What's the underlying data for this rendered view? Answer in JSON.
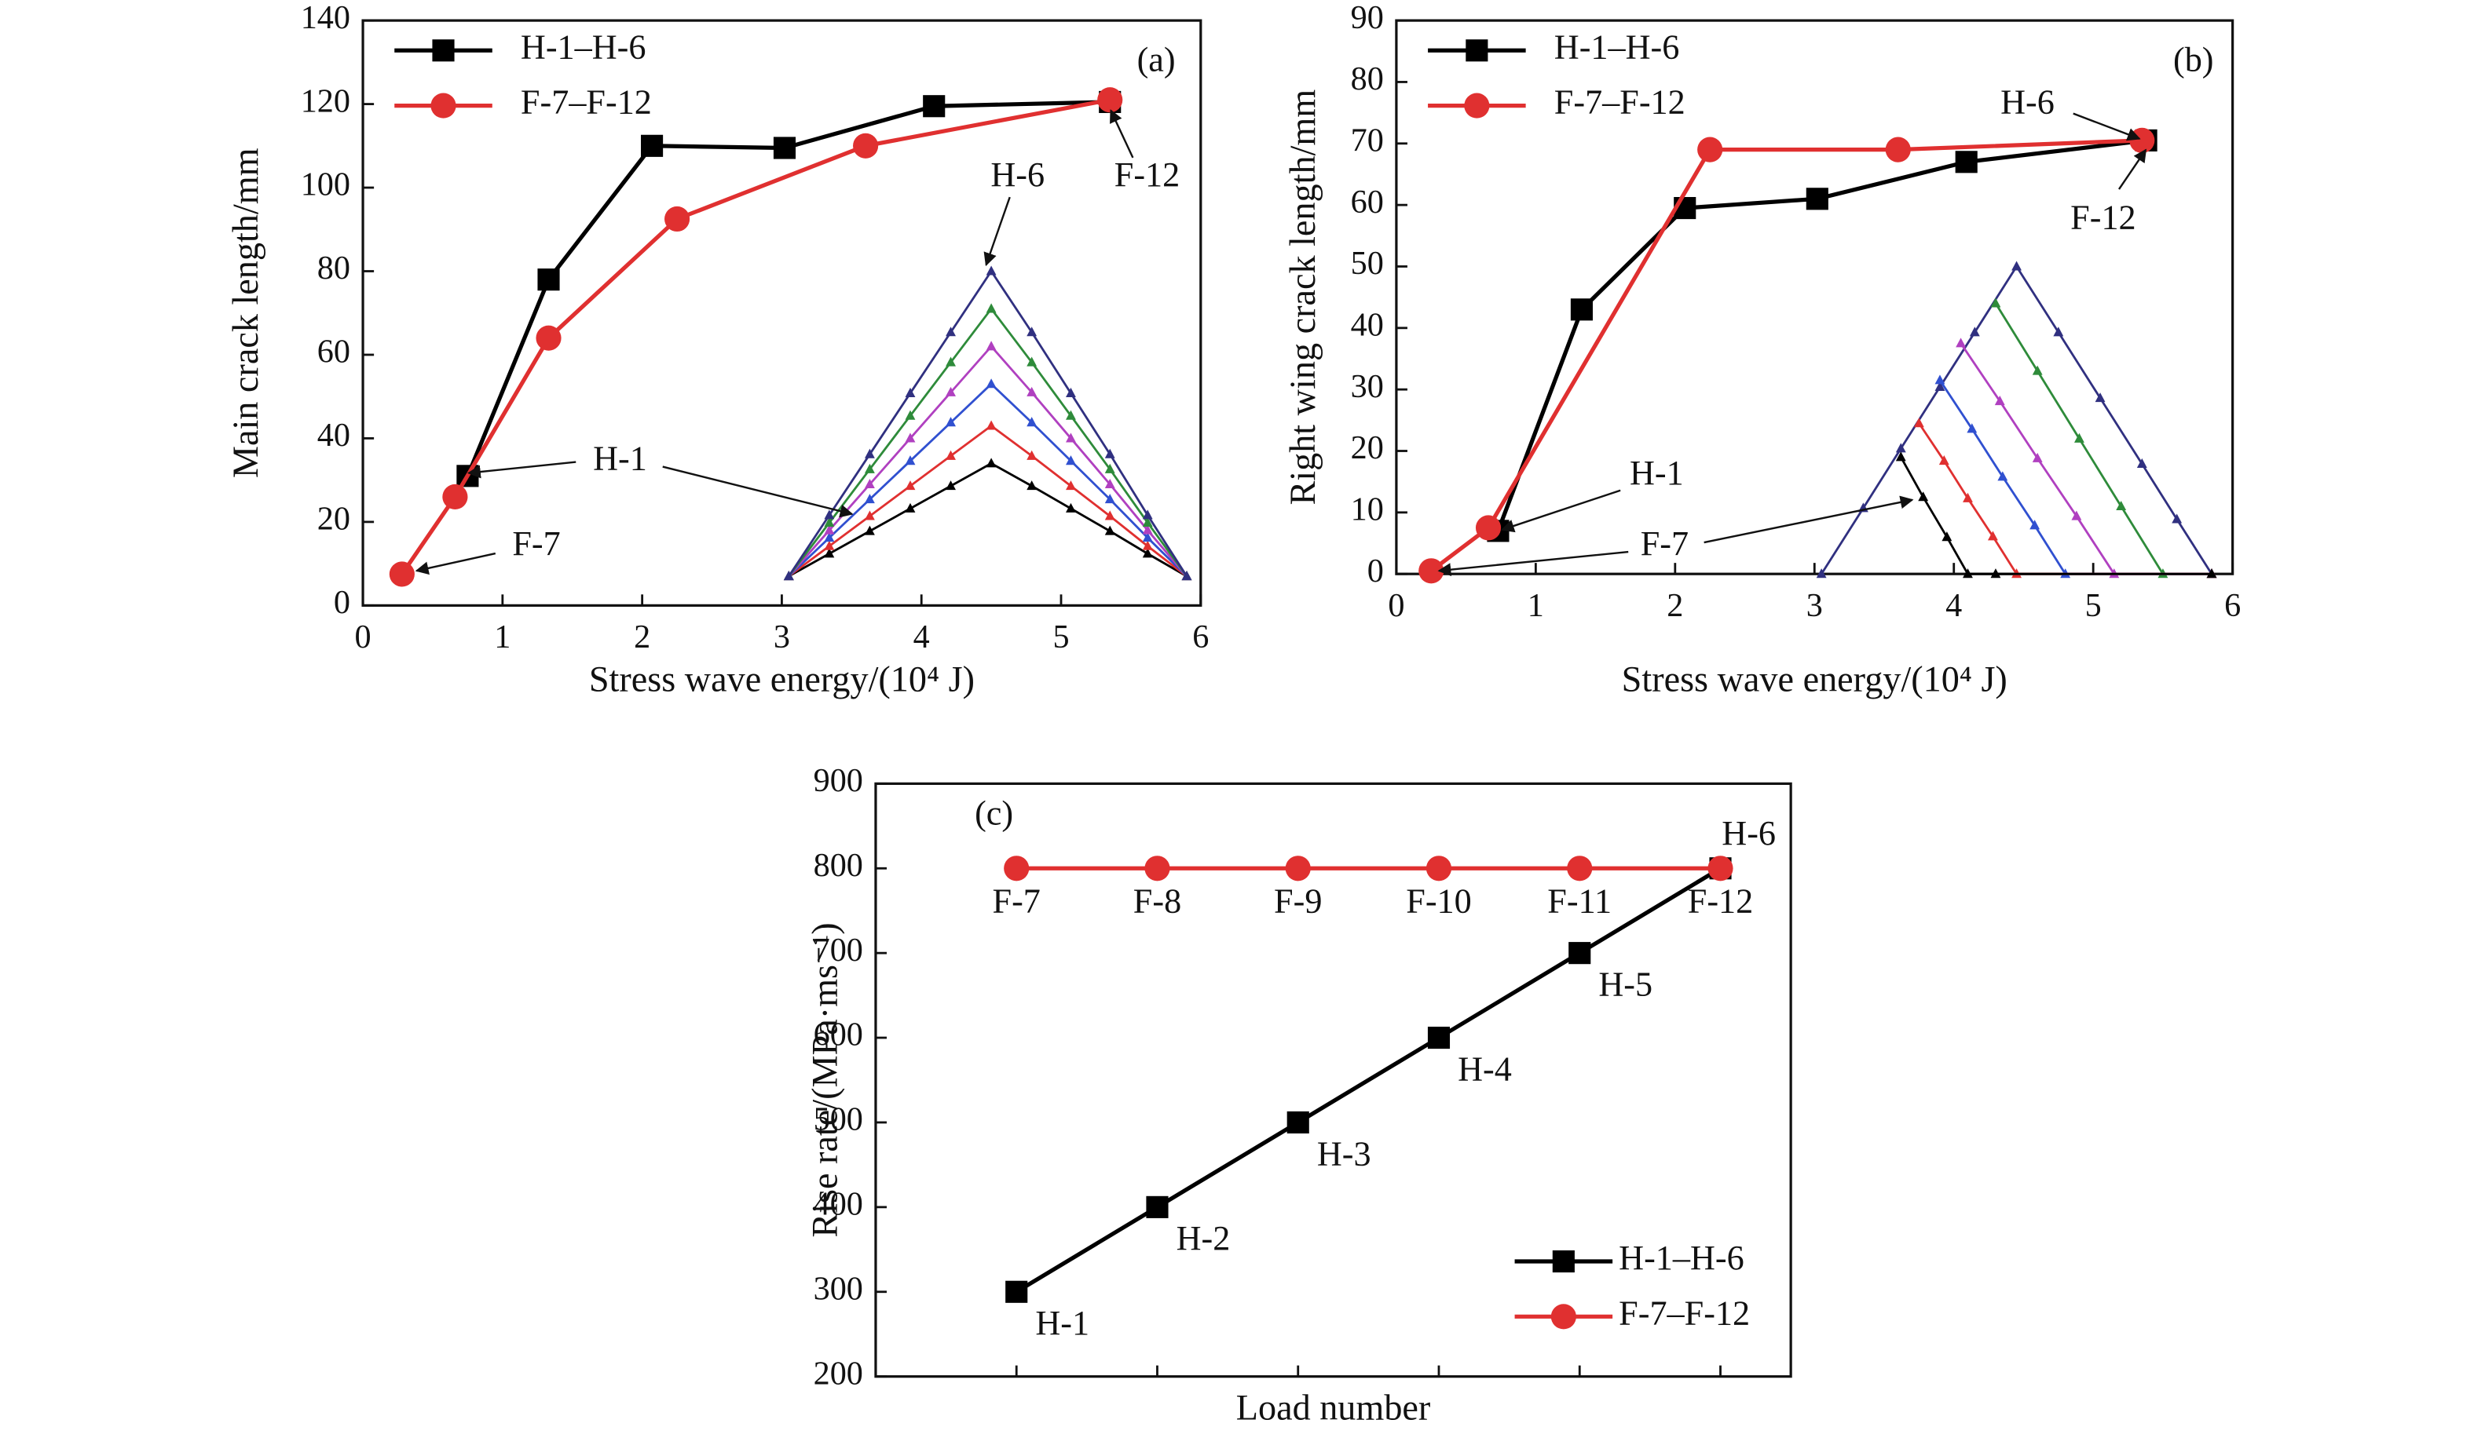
{
  "chart_data": [
    {
      "type": "line",
      "panel": "(a)",
      "xlabel": "Stress wave energy/(10⁴ J)",
      "ylabel": "Main crack length/mm",
      "xlim": [
        0,
        6
      ],
      "xticks": [
        0,
        1,
        2,
        3,
        4,
        5,
        6
      ],
      "ylim": [
        0,
        140
      ],
      "yticks": [
        0,
        20,
        40,
        60,
        80,
        100,
        120,
        140
      ],
      "grid": false,
      "legend": "upper left",
      "series": [
        {
          "name": "H-1–H-6",
          "color": "#000000",
          "marker": "square",
          "x": [
            0.75,
            1.33,
            2.07,
            3.02,
            4.09,
            5.35
          ],
          "values": [
            31,
            78,
            110,
            109.5,
            119.5,
            120.5
          ]
        },
        {
          "name": "F-7–F-12",
          "color": "#e03030",
          "marker": "circle",
          "x": [
            0.28,
            0.66,
            1.33,
            2.25,
            3.6,
            5.35
          ],
          "values": [
            7.5,
            26,
            64,
            92.5,
            110,
            121
          ]
        }
      ],
      "inset": [
        {
          "color": "#000000",
          "x": [
            3.05,
            3.34,
            3.63,
            3.92,
            4.21,
            4.5,
            4.79,
            5.07,
            5.35,
            5.62,
            5.9
          ],
          "values": [
            7,
            12.4,
            17.8,
            23.2,
            28.6,
            34,
            28.6,
            23.2,
            17.8,
            12.4,
            7
          ]
        },
        {
          "color": "#e03030",
          "x": [
            3.05,
            3.34,
            3.63,
            3.92,
            4.21,
            4.5,
            4.79,
            5.07,
            5.35,
            5.62,
            5.9
          ],
          "values": [
            7,
            14.2,
            21.4,
            28.6,
            35.8,
            43,
            35.8,
            28.6,
            21.4,
            14.2,
            7
          ]
        },
        {
          "color": "#3050d0",
          "x": [
            3.05,
            3.34,
            3.63,
            3.92,
            4.21,
            4.5,
            4.79,
            5.07,
            5.35,
            5.62,
            5.9
          ],
          "values": [
            7,
            16.2,
            25.4,
            34.6,
            43.8,
            53,
            43.8,
            34.6,
            25.4,
            16.2,
            7
          ]
        },
        {
          "color": "#b040c0",
          "x": [
            3.05,
            3.34,
            3.63,
            3.92,
            4.21,
            4.5,
            4.79,
            5.07,
            5.35,
            5.62,
            5.9
          ],
          "values": [
            7,
            18,
            29,
            40,
            51,
            62,
            51,
            40,
            29,
            18,
            7
          ]
        },
        {
          "color": "#2e8b3a",
          "x": [
            3.05,
            3.34,
            3.63,
            3.92,
            4.21,
            4.5,
            4.79,
            5.07,
            5.35,
            5.62,
            5.9
          ],
          "values": [
            7,
            19.8,
            32.6,
            45.4,
            58.2,
            71,
            58.2,
            45.4,
            32.6,
            19.8,
            7
          ]
        },
        {
          "color": "#303080",
          "x": [
            3.05,
            3.34,
            3.63,
            3.92,
            4.21,
            4.5,
            4.79,
            5.07,
            5.35,
            5.62,
            5.9
          ],
          "values": [
            7,
            21.6,
            36.2,
            50.8,
            65.4,
            80,
            65.4,
            50.8,
            36.2,
            21.6,
            7
          ]
        }
      ],
      "annotations": [
        "H-6",
        "F-12",
        "H-1",
        "F-7"
      ]
    },
    {
      "type": "line",
      "panel": "(b)",
      "xlabel": "Stress wave energy/(10⁴ J)",
      "ylabel": "Right wing crack length/mm",
      "xlim": [
        0,
        6
      ],
      "xticks": [
        0,
        1,
        2,
        3,
        4,
        5,
        6
      ],
      "ylim": [
        0,
        90
      ],
      "yticks": [
        0,
        10,
        20,
        30,
        40,
        50,
        60,
        70,
        80,
        90
      ],
      "grid": false,
      "legend": "upper left",
      "series": [
        {
          "name": "H-1–H-6",
          "color": "#000000",
          "marker": "square",
          "x": [
            0.73,
            1.33,
            2.07,
            3.02,
            4.09,
            5.38
          ],
          "values": [
            7,
            43,
            59.5,
            61,
            67,
            70.5
          ]
        },
        {
          "name": "F-7–F-12",
          "color": "#e03030",
          "marker": "circle",
          "x": [
            0.25,
            0.66,
            2.25,
            3.6,
            5.35
          ],
          "values": [
            0.5,
            7.5,
            69,
            69,
            70.5
          ]
        }
      ],
      "inset": [
        {
          "color": "#303080",
          "x": [
            3.05,
            3.35,
            3.62,
            3.9,
            4.15,
            4.45,
            4.75,
            5.05,
            5.35,
            5.6,
            5.85
          ],
          "values": [
            0,
            10.7,
            20.4,
            30.4,
            39.3,
            50,
            39.3,
            28.6,
            17.9,
            8.9,
            0
          ]
        },
        {
          "color": "#2e8b3a",
          "x": [
            4.3,
            4.6,
            4.9,
            5.2,
            5.5,
            5.85
          ],
          "values": [
            44,
            33,
            22,
            11,
            0,
            0
          ]
        },
        {
          "color": "#b040c0",
          "x": [
            4.05,
            4.33,
            4.6,
            4.88,
            5.15,
            5.85
          ],
          "values": [
            37.5,
            28.1,
            18.8,
            9.4,
            0,
            0
          ]
        },
        {
          "color": "#3050d0",
          "x": [
            3.9,
            4.13,
            4.35,
            4.58,
            4.8,
            5.85
          ],
          "values": [
            31.5,
            23.6,
            15.8,
            7.9,
            0,
            0
          ]
        },
        {
          "color": "#e03030",
          "x": [
            3.75,
            3.93,
            4.1,
            4.28,
            4.45,
            5.85
          ],
          "values": [
            24.5,
            18.4,
            12.3,
            6.1,
            0,
            0
          ]
        },
        {
          "color": "#000000",
          "x": [
            3.62,
            3.78,
            3.95,
            4.1,
            4.3,
            5.85
          ],
          "values": [
            19,
            12.5,
            6,
            0,
            0,
            0
          ]
        }
      ],
      "annotations": [
        "H-6",
        "F-12",
        "H-1",
        "F-7"
      ]
    },
    {
      "type": "line",
      "panel": "(c)",
      "xlabel": "Load number",
      "ylabel": "Rise rate/(MPa·ms⁻¹)",
      "categories": [
        null,
        null,
        null,
        null,
        null,
        null
      ],
      "ylim": [
        200,
        900
      ],
      "yticks": [
        200,
        300,
        400,
        500,
        600,
        700,
        800,
        900
      ],
      "grid": false,
      "legend": "lower right",
      "series": [
        {
          "name": "H-1–H-6",
          "color": "#000000",
          "marker": "square",
          "values": [
            300,
            400,
            500,
            600,
            700,
            800
          ],
          "point_labels": [
            "H-1",
            "H-2",
            "H-3",
            "H-4",
            "H-5",
            "H-6"
          ]
        },
        {
          "name": "F-7–F-12",
          "color": "#e03030",
          "marker": "circle",
          "values": [
            800,
            800,
            800,
            800,
            800,
            800
          ],
          "point_labels": [
            "F-7",
            "F-8",
            "F-9",
            "F-10",
            "F-11",
            "F-12"
          ]
        }
      ],
      "inset": [],
      "annotations": []
    }
  ]
}
